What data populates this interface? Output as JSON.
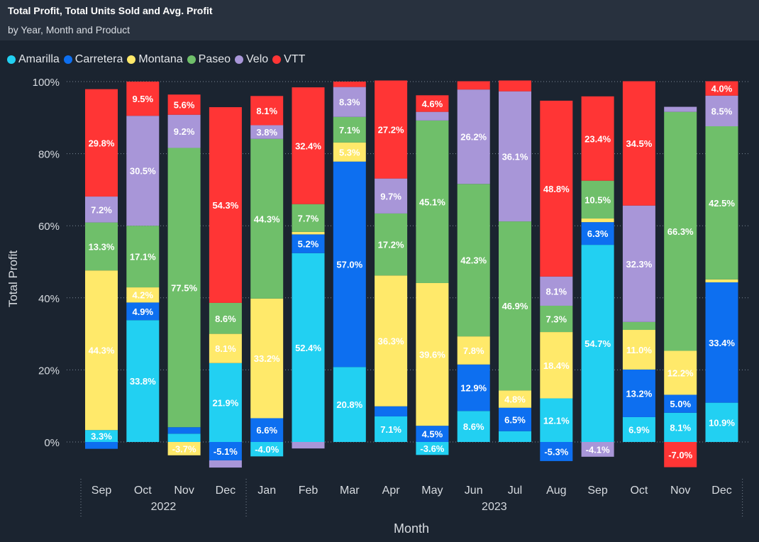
{
  "header": {
    "title": "Total Profit, Total Units Sold and Avg. Profit",
    "subtitle": "by Year, Month and Product"
  },
  "legend": [
    {
      "name": "Amarilla",
      "color": "#22d0f2"
    },
    {
      "name": "Carretera",
      "color": "#0d6ff0"
    },
    {
      "name": "Montana",
      "color": "#ffe96a"
    },
    {
      "name": "Paseo",
      "color": "#6fbf6a"
    },
    {
      "name": "Velo",
      "color": "#a896d8"
    },
    {
      "name": "VTT",
      "color": "#ff3535"
    }
  ],
  "chart_data": {
    "type": "stacked-bar-percent",
    "title": "Total Profit, Total Units Sold and Avg. Profit",
    "subtitle": "by Year, Month and Product",
    "xlabel": "Month",
    "ylabel": "Total Profit",
    "ylim": [
      -10,
      100
    ],
    "yticks": [
      0,
      20,
      40,
      60,
      80,
      100
    ],
    "ytick_labels": [
      "0%",
      "20%",
      "40%",
      "60%",
      "80%",
      "100%"
    ],
    "years": [
      {
        "label": "2022",
        "months": 4
      },
      {
        "label": "2023",
        "months": 12
      }
    ],
    "categories": [
      "Sep",
      "Oct",
      "Nov",
      "Dec",
      "Jan",
      "Feb",
      "Mar",
      "Apr",
      "May",
      "Jun",
      "Jul",
      "Aug",
      "Sep",
      "Oct",
      "Nov",
      "Dec"
    ],
    "series": [
      {
        "name": "Amarilla",
        "color": "#22d0f2",
        "values": [
          3.3,
          33.8,
          2.3,
          21.9,
          -4.0,
          52.4,
          20.8,
          7.1,
          -3.6,
          8.6,
          3.0,
          12.1,
          54.7,
          6.9,
          8.1,
          10.9
        ]
      },
      {
        "name": "Carretera",
        "color": "#0d6ff0",
        "values": [
          -1.9,
          4.9,
          1.8,
          -5.1,
          6.6,
          5.2,
          57.0,
          2.8,
          4.5,
          12.9,
          6.5,
          -5.3,
          6.3,
          13.2,
          5.0,
          33.4
        ]
      },
      {
        "name": "Montana",
        "color": "#ffe96a",
        "values": [
          44.3,
          4.2,
          -3.7,
          8.1,
          33.2,
          0.7,
          5.3,
          36.3,
          39.6,
          7.8,
          4.8,
          18.4,
          1.0,
          11.0,
          12.2,
          0.8
        ]
      },
      {
        "name": "Paseo",
        "color": "#6fbf6a",
        "values": [
          13.3,
          17.1,
          77.5,
          8.6,
          44.3,
          7.7,
          7.1,
          17.2,
          45.1,
          42.3,
          46.9,
          7.3,
          10.5,
          2.2,
          66.3,
          42.5
        ]
      },
      {
        "name": "Velo",
        "color": "#a896d8",
        "values": [
          7.2,
          30.5,
          9.2,
          -2.0,
          3.8,
          -1.8,
          8.3,
          9.7,
          2.4,
          26.2,
          36.1,
          8.1,
          -4.1,
          32.3,
          1.4,
          8.5
        ]
      },
      {
        "name": "VTT",
        "color": "#ff3535",
        "values": [
          29.8,
          9.5,
          5.6,
          54.3,
          8.1,
          32.4,
          1.5,
          27.2,
          4.6,
          2.3,
          3.0,
          48.8,
          23.4,
          34.5,
          -7.0,
          4.0
        ]
      }
    ],
    "data_labels": [
      {
        "month": 0,
        "series": "VTT",
        "text": "29.8%"
      },
      {
        "month": 0,
        "series": "Velo",
        "text": "7.2%"
      },
      {
        "month": 0,
        "series": "Paseo",
        "text": "13.3%"
      },
      {
        "month": 0,
        "series": "Montana",
        "text": "44.3%"
      },
      {
        "month": 0,
        "series": "Amarilla",
        "text": "3.3%"
      },
      {
        "month": 1,
        "series": "VTT",
        "text": "9.5%"
      },
      {
        "month": 1,
        "series": "Velo",
        "text": "30.5%"
      },
      {
        "month": 1,
        "series": "Paseo",
        "text": "17.1%"
      },
      {
        "month": 1,
        "series": "Montana",
        "text": "4.2%"
      },
      {
        "month": 1,
        "series": "Carretera",
        "text": "4.9%"
      },
      {
        "month": 1,
        "series": "Amarilla",
        "text": "33.8%"
      },
      {
        "month": 2,
        "series": "VTT",
        "text": "5.6%"
      },
      {
        "month": 2,
        "series": "Velo",
        "text": "9.2%"
      },
      {
        "month": 2,
        "series": "Paseo",
        "text": "77.5%"
      },
      {
        "month": 2,
        "series": "Montana",
        "text": "-3.7%"
      },
      {
        "month": 3,
        "series": "VTT",
        "text": "54.3%"
      },
      {
        "month": 3,
        "series": "Paseo",
        "text": "8.6%"
      },
      {
        "month": 3,
        "series": "Montana",
        "text": "8.1%"
      },
      {
        "month": 3,
        "series": "Amarilla",
        "text": "21.9%"
      },
      {
        "month": 3,
        "series": "Carretera",
        "text": "-5.1%"
      },
      {
        "month": 4,
        "series": "VTT",
        "text": "8.1%"
      },
      {
        "month": 4,
        "series": "Velo",
        "text": "3.8%"
      },
      {
        "month": 4,
        "series": "Paseo",
        "text": "44.3%"
      },
      {
        "month": 4,
        "series": "Montana",
        "text": "33.2%"
      },
      {
        "month": 4,
        "series": "Carretera",
        "text": "6.6%"
      },
      {
        "month": 4,
        "series": "Amarilla",
        "text": "-4.0%"
      },
      {
        "month": 5,
        "series": "VTT",
        "text": "32.4%"
      },
      {
        "month": 5,
        "series": "Paseo",
        "text": "7.7%"
      },
      {
        "month": 5,
        "series": "Carretera",
        "text": "5.2%"
      },
      {
        "month": 5,
        "series": "Amarilla",
        "text": "52.4%"
      },
      {
        "month": 6,
        "series": "Velo",
        "text": "8.3%"
      },
      {
        "month": 6,
        "series": "Paseo",
        "text": "7.1%"
      },
      {
        "month": 6,
        "series": "Montana",
        "text": "5.3%"
      },
      {
        "month": 6,
        "series": "Carretera",
        "text": "57.0%"
      },
      {
        "month": 6,
        "series": "Amarilla",
        "text": "20.8%"
      },
      {
        "month": 7,
        "series": "VTT",
        "text": "27.2%"
      },
      {
        "month": 7,
        "series": "Velo",
        "text": "9.7%"
      },
      {
        "month": 7,
        "series": "Paseo",
        "text": "17.2%"
      },
      {
        "month": 7,
        "series": "Montana",
        "text": "36.3%"
      },
      {
        "month": 7,
        "series": "Amarilla",
        "text": "7.1%"
      },
      {
        "month": 8,
        "series": "VTT",
        "text": "4.6%"
      },
      {
        "month": 8,
        "series": "Paseo",
        "text": "45.1%"
      },
      {
        "month": 8,
        "series": "Montana",
        "text": "39.6%"
      },
      {
        "month": 8,
        "series": "Carretera",
        "text": "4.5%"
      },
      {
        "month": 8,
        "series": "Amarilla",
        "text": "-3.6%"
      },
      {
        "month": 9,
        "series": "Velo",
        "text": "26.2%"
      },
      {
        "month": 9,
        "series": "Paseo",
        "text": "42.3%"
      },
      {
        "month": 9,
        "series": "Montana",
        "text": "7.8%"
      },
      {
        "month": 9,
        "series": "Carretera",
        "text": "12.9%"
      },
      {
        "month": 9,
        "series": "Amarilla",
        "text": "8.6%"
      },
      {
        "month": 10,
        "series": "Velo",
        "text": "36.1%"
      },
      {
        "month": 10,
        "series": "Paseo",
        "text": "46.9%"
      },
      {
        "month": 10,
        "series": "Montana",
        "text": "4.8%"
      },
      {
        "month": 10,
        "series": "Carretera",
        "text": "6.5%"
      },
      {
        "month": 11,
        "series": "VTT",
        "text": "48.8%"
      },
      {
        "month": 11,
        "series": "Velo",
        "text": "8.1%"
      },
      {
        "month": 11,
        "series": "Paseo",
        "text": "7.3%"
      },
      {
        "month": 11,
        "series": "Montana",
        "text": "18.4%"
      },
      {
        "month": 11,
        "series": "Amarilla",
        "text": "12.1%"
      },
      {
        "month": 11,
        "series": "Carretera",
        "text": "-5.3%"
      },
      {
        "month": 12,
        "series": "VTT",
        "text": "23.4%"
      },
      {
        "month": 12,
        "series": "Paseo",
        "text": "10.5%"
      },
      {
        "month": 12,
        "series": "Carretera",
        "text": "6.3%"
      },
      {
        "month": 12,
        "series": "Amarilla",
        "text": "54.7%"
      },
      {
        "month": 12,
        "series": "Velo",
        "text": "-4.1%"
      },
      {
        "month": 13,
        "series": "VTT",
        "text": "34.5%"
      },
      {
        "month": 13,
        "series": "Velo",
        "text": "32.3%"
      },
      {
        "month": 13,
        "series": "Montana",
        "text": "11.0%"
      },
      {
        "month": 13,
        "series": "Carretera",
        "text": "13.2%"
      },
      {
        "month": 13,
        "series": "Amarilla",
        "text": "6.9%"
      },
      {
        "month": 14,
        "series": "Paseo",
        "text": "66.3%"
      },
      {
        "month": 14,
        "series": "Montana",
        "text": "12.2%"
      },
      {
        "month": 14,
        "series": "Carretera",
        "text": "5.0%"
      },
      {
        "month": 14,
        "series": "Amarilla",
        "text": "8.1%"
      },
      {
        "month": 14,
        "series": "VTT",
        "text": "-7.0%"
      },
      {
        "month": 15,
        "series": "VTT",
        "text": "4.0%"
      },
      {
        "month": 15,
        "series": "Velo",
        "text": "8.5%"
      },
      {
        "month": 15,
        "series": "Paseo",
        "text": "42.5%"
      },
      {
        "month": 15,
        "series": "Carretera",
        "text": "33.4%"
      },
      {
        "month": 15,
        "series": "Amarilla",
        "text": "10.9%"
      }
    ]
  }
}
